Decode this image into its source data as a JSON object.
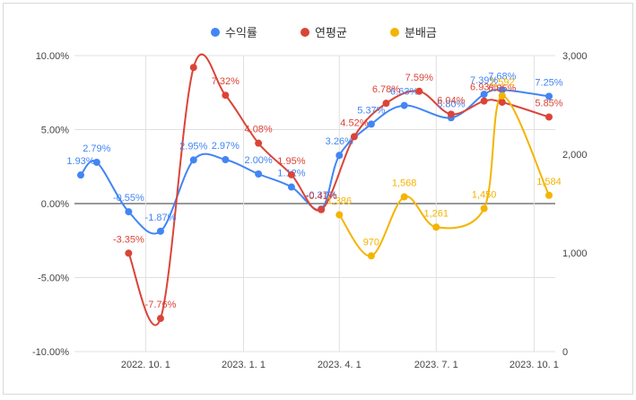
{
  "chart_data": {
    "type": "line",
    "x": [
      "2022-08-01",
      "2022-08-16",
      "2022-09-15",
      "2022-10-01",
      "2022-10-15",
      "2022-11-01",
      "2022-11-15",
      "2022-12-01",
      "2022-12-15",
      "2023-01-01",
      "2023-01-15",
      "2023-02-01",
      "2023-02-15",
      "2023-03-01",
      "2023-03-15",
      "2023-04-01",
      "2023-04-15",
      "2023-05-01",
      "2023-05-15",
      "2023-06-01",
      "2023-06-15",
      "2023-07-01",
      "2023-07-15",
      "2023-08-01",
      "2023-08-15",
      "2023-09-01",
      "2023-09-15",
      "2023-10-01",
      "2023-10-15"
    ],
    "x_ticks": [
      {
        "date": "2022-10-01",
        "label": "2022. 10. 1"
      },
      {
        "date": "2023-01-01",
        "label": "2023. 1. 1"
      },
      {
        "date": "2023-04-01",
        "label": "2023. 4. 1"
      },
      {
        "date": "2023-07-01",
        "label": "2023. 7. 1"
      },
      {
        "date": "2023-10-01",
        "label": "2023. 10. 1"
      }
    ],
    "y_left": {
      "ticks": [
        -10,
        -5,
        0,
        5,
        10
      ],
      "tick_labels": [
        "-10.00%",
        "-5.00%",
        "0.00%",
        "5.00%",
        "10.00%"
      ],
      "range": [
        -10,
        10
      ]
    },
    "y_right": {
      "ticks": [
        0,
        1000,
        2000,
        3000
      ],
      "tick_labels": [
        "0",
        "1,000",
        "2,000",
        "3,000"
      ],
      "range": [
        0,
        3000
      ]
    },
    "legend_position": "top",
    "series": [
      {
        "name": "수익률",
        "axis": "left",
        "color": "#4285f4",
        "points": [
          {
            "x": "2022-08-01",
            "y": 1.93,
            "label": "1.93%"
          },
          {
            "x": "2022-08-16",
            "y": 2.79,
            "label": "2.79%"
          },
          {
            "x": "2022-09-15",
            "y": -0.55,
            "label": "-0.55%"
          },
          {
            "x": "2022-10-15",
            "y": -1.87,
            "label": "-1.87%"
          },
          {
            "x": "2022-11-15",
            "y": 2.95,
            "label": "2.95%"
          },
          {
            "x": "2022-12-15",
            "y": 2.97,
            "label": "2.97%"
          },
          {
            "x": "2023-01-15",
            "y": 2.0,
            "label": "2.00%"
          },
          {
            "x": "2023-02-15",
            "y": 1.12,
            "label": "1.12%"
          },
          {
            "x": "2023-03-15",
            "y": -0.37,
            "label": "-0.37%"
          },
          {
            "x": "2023-04-01",
            "y": 3.26,
            "label": "3.26%"
          },
          {
            "x": "2023-05-01",
            "y": 5.37,
            "label": "5.37%"
          },
          {
            "x": "2023-06-01",
            "y": 6.63,
            "label": "6.63%"
          },
          {
            "x": "2023-07-15",
            "y": 5.8,
            "label": "5.80%"
          },
          {
            "x": "2023-08-15",
            "y": 7.39,
            "label": "7.39%"
          },
          {
            "x": "2023-09-01",
            "y": 7.68,
            "label": "7.68%"
          },
          {
            "x": "2023-10-15",
            "y": 7.25,
            "label": "7.25%"
          }
        ]
      },
      {
        "name": "연평균",
        "axis": "left",
        "color": "#db4437",
        "points": [
          {
            "x": "2022-09-15",
            "y": -3.35,
            "label": "-3.35%"
          },
          {
            "x": "2022-10-15",
            "y": -7.76,
            "label": "-7.76%"
          },
          {
            "x": "2022-11-15",
            "y": 9.2,
            "label": ""
          },
          {
            "x": "2022-12-15",
            "y": 7.32,
            "label": "7.32%"
          },
          {
            "x": "2023-01-15",
            "y": 4.08,
            "label": "4.08%"
          },
          {
            "x": "2023-02-15",
            "y": 1.95,
            "label": "1.95%"
          },
          {
            "x": "2023-03-15",
            "y": -0.41,
            "label": "-0.41%"
          },
          {
            "x": "2023-04-15",
            "y": 4.52,
            "label": "4.52%"
          },
          {
            "x": "2023-05-15",
            "y": 6.78,
            "label": "6.78%"
          },
          {
            "x": "2023-06-15",
            "y": 7.59,
            "label": "7.59%"
          },
          {
            "x": "2023-07-15",
            "y": 6.04,
            "label": "6.04%"
          },
          {
            "x": "2023-08-15",
            "y": 6.93,
            "label": "6.93%"
          },
          {
            "x": "2023-09-01",
            "y": 6.85,
            "label": "6.85%"
          },
          {
            "x": "2023-10-15",
            "y": 5.85,
            "label": "5.85%"
          }
        ]
      },
      {
        "name": "분배금",
        "axis": "right",
        "color": "#f4b400",
        "points": [
          {
            "x": "2023-04-01",
            "y": 1386,
            "label": "1,386"
          },
          {
            "x": "2023-05-01",
            "y": 970,
            "label": "970"
          },
          {
            "x": "2023-06-01",
            "y": 1568,
            "label": "1,568"
          },
          {
            "x": "2023-07-01",
            "y": 1261,
            "label": "1,261"
          },
          {
            "x": "2023-08-15",
            "y": 1450,
            "label": "1,450"
          },
          {
            "x": "2023-09-01",
            "y": 2592,
            "label": "2,592"
          },
          {
            "x": "2023-10-15",
            "y": 1584,
            "label": "1,584"
          }
        ]
      }
    ]
  }
}
